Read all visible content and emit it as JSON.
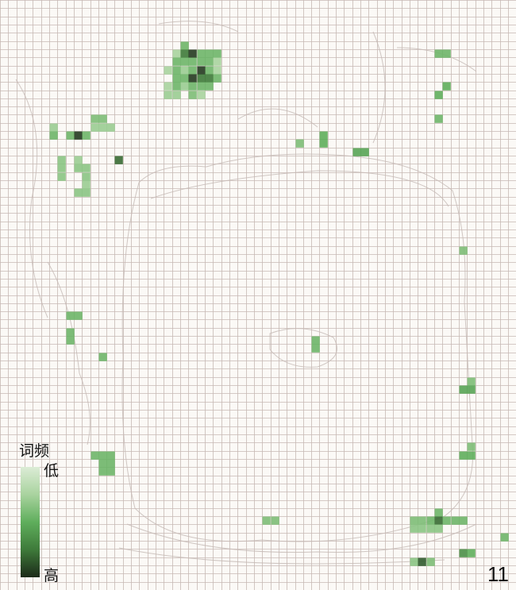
{
  "legend": {
    "title": "词频",
    "low_label": "低",
    "high_label": "高",
    "colors": [
      "#dcecd6",
      "#a9d39f",
      "#5fae5c",
      "#3e7a3a",
      "#1c2a19"
    ]
  },
  "page_number": "11",
  "chart_data": {
    "type": "heatmap",
    "grid": {
      "columns": 63,
      "rows": 72
    },
    "value_range": [
      0,
      1
    ],
    "cells": [
      [
        22,
        5,
        0.45
      ],
      [
        21,
        6,
        0.25
      ],
      [
        22,
        6,
        0.75
      ],
      [
        23,
        6,
        0.95
      ],
      [
        24,
        6,
        0.45
      ],
      [
        25,
        6,
        0.45
      ],
      [
        26,
        6,
        0.45
      ],
      [
        21,
        7,
        0.45
      ],
      [
        22,
        7,
        0.45
      ],
      [
        23,
        7,
        0.45
      ],
      [
        24,
        7,
        0.45
      ],
      [
        25,
        7,
        0.45
      ],
      [
        26,
        7,
        0.25
      ],
      [
        20,
        8,
        0.25
      ],
      [
        21,
        8,
        0.45
      ],
      [
        22,
        8,
        0.3
      ],
      [
        23,
        8,
        0.45
      ],
      [
        24,
        8,
        0.95
      ],
      [
        25,
        8,
        0.45
      ],
      [
        26,
        8,
        0.25
      ],
      [
        21,
        9,
        0.45
      ],
      [
        22,
        9,
        0.45
      ],
      [
        23,
        9,
        0.95
      ],
      [
        24,
        9,
        0.75
      ],
      [
        25,
        9,
        0.75
      ],
      [
        26,
        9,
        0.45
      ],
      [
        20,
        10,
        0.25
      ],
      [
        21,
        10,
        0.45
      ],
      [
        22,
        10,
        0.3
      ],
      [
        23,
        10,
        0.45
      ],
      [
        24,
        10,
        0.45
      ],
      [
        25,
        10,
        0.45
      ],
      [
        20,
        11,
        0.3
      ],
      [
        21,
        11,
        0.3
      ],
      [
        23,
        11,
        0.4
      ],
      [
        24,
        11,
        0.25
      ],
      [
        11,
        14,
        0.4
      ],
      [
        12,
        14,
        0.4
      ],
      [
        6,
        15,
        0.3
      ],
      [
        11,
        15,
        0.3
      ],
      [
        12,
        15,
        0.3
      ],
      [
        13,
        15,
        0.3
      ],
      [
        6,
        16,
        0.45
      ],
      [
        8,
        16,
        0.45
      ],
      [
        9,
        16,
        0.95
      ],
      [
        10,
        16,
        0.45
      ],
      [
        7,
        19,
        0.35
      ],
      [
        9,
        19,
        0.3
      ],
      [
        14,
        19,
        0.8
      ],
      [
        7,
        20,
        0.35
      ],
      [
        9,
        20,
        0.35
      ],
      [
        10,
        20,
        0.35
      ],
      [
        7,
        21,
        0.35
      ],
      [
        10,
        21,
        0.35
      ],
      [
        10,
        22,
        0.3
      ],
      [
        9,
        23,
        0.35
      ],
      [
        10,
        23,
        0.35
      ],
      [
        53,
        6,
        0.45
      ],
      [
        54,
        6,
        0.45
      ],
      [
        54,
        10,
        0.5
      ],
      [
        53,
        11,
        0.5
      ],
      [
        53,
        14,
        0.45
      ],
      [
        36,
        17,
        0.4
      ],
      [
        39,
        16,
        0.5
      ],
      [
        39,
        17,
        0.5
      ],
      [
        43,
        18,
        0.55
      ],
      [
        44,
        18,
        0.55
      ],
      [
        56,
        30,
        0.4
      ],
      [
        8,
        38,
        0.45
      ],
      [
        9,
        38,
        0.45
      ],
      [
        8,
        40,
        0.45
      ],
      [
        8,
        41,
        0.45
      ],
      [
        12,
        43,
        0.45
      ],
      [
        38,
        41,
        0.45
      ],
      [
        38,
        42,
        0.45
      ],
      [
        57,
        46,
        0.4
      ],
      [
        56,
        47,
        0.55
      ],
      [
        57,
        47,
        0.55
      ],
      [
        57,
        54,
        0.4
      ],
      [
        56,
        55,
        0.5
      ],
      [
        57,
        55,
        0.5
      ],
      [
        11,
        55,
        0.45
      ],
      [
        12,
        55,
        0.45
      ],
      [
        13,
        55,
        0.45
      ],
      [
        12,
        56,
        0.45
      ],
      [
        13,
        56,
        0.45
      ],
      [
        12,
        57,
        0.45
      ],
      [
        13,
        57,
        0.45
      ],
      [
        32,
        63,
        0.4
      ],
      [
        33,
        63,
        0.4
      ],
      [
        53,
        62,
        0.45
      ],
      [
        50,
        63,
        0.4
      ],
      [
        51,
        63,
        0.4
      ],
      [
        52,
        63,
        0.45
      ],
      [
        53,
        63,
        0.8
      ],
      [
        54,
        63,
        0.45
      ],
      [
        55,
        63,
        0.45
      ],
      [
        56,
        63,
        0.45
      ],
      [
        50,
        64,
        0.35
      ],
      [
        51,
        64,
        0.35
      ],
      [
        52,
        64,
        0.35
      ],
      [
        53,
        64,
        0.35
      ],
      [
        61,
        65,
        0.45
      ],
      [
        56,
        67,
        0.65
      ],
      [
        57,
        67,
        0.5
      ],
      [
        50,
        68,
        0.35
      ],
      [
        51,
        68,
        0.85
      ],
      [
        52,
        68,
        0.4
      ]
    ]
  }
}
